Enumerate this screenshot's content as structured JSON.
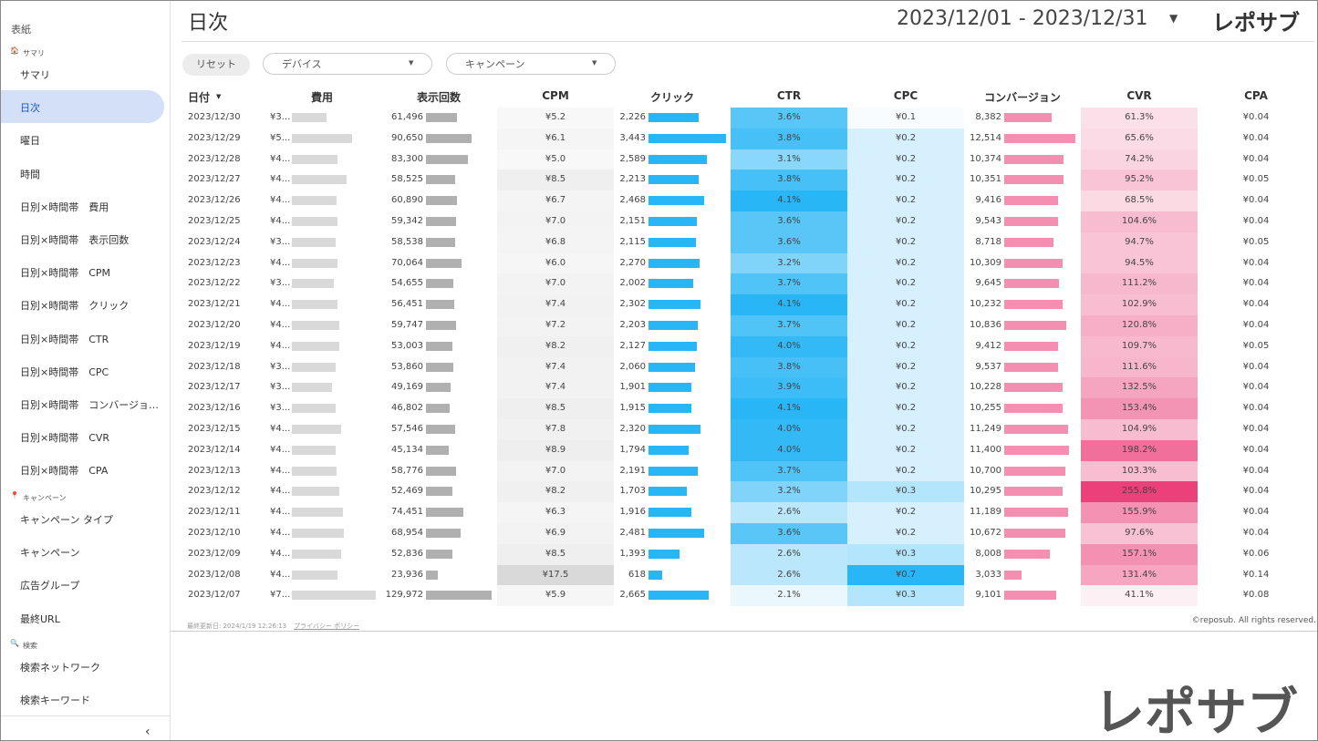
{
  "sidebar": {
    "cover": "表紙",
    "sections": [
      {
        "title": "サマリ",
        "items": [
          "サマリ",
          "日次",
          "曜日",
          "時間",
          "日別×時間帯　費用",
          "日別×時間帯　表示回数",
          "日別×時間帯　CPM",
          "日別×時間帯　クリック",
          "日別×時間帯　CTR",
          "日別×時間帯　CPC",
          "日別×時間帯　コンバージョ…",
          "日別×時間帯　CVR",
          "日別×時間帯　CPA"
        ]
      },
      {
        "title": "キャンペーン",
        "items": [
          "キャンペーン タイプ",
          "キャンペーン",
          "広告グループ",
          "最終URL"
        ]
      },
      {
        "title": "検索",
        "items": [
          "検索ネットワーク",
          "検索キーワード"
        ]
      }
    ]
  },
  "header": {
    "title": "日次",
    "date_range": "2023/12/01 - 2023/12/31",
    "logo": "レポサブ"
  },
  "filters": {
    "reset": "リセット",
    "device": "デバイス",
    "campaign": "キャンペーン"
  },
  "table": {
    "columns": [
      "日付",
      "費用",
      "表示回数",
      "CPM",
      "クリック",
      "CTR",
      "CPC",
      "コンバージョン",
      "CVR",
      "CPA"
    ],
    "rows": [
      [
        "2023/12/30",
        "¥3...",
        "61,496",
        "¥5.2",
        "2,226",
        "3.6%",
        "¥0.1",
        "8,382",
        "61.3%",
        "¥0.04"
      ],
      [
        "2023/12/29",
        "¥5...",
        "90,650",
        "¥6.1",
        "3,443",
        "3.8%",
        "¥0.2",
        "12,514",
        "65.6%",
        "¥0.04"
      ],
      [
        "2023/12/28",
        "¥4...",
        "83,300",
        "¥5.0",
        "2,589",
        "3.1%",
        "¥0.2",
        "10,374",
        "74.2%",
        "¥0.04"
      ],
      [
        "2023/12/27",
        "¥4...",
        "58,525",
        "¥8.5",
        "2,213",
        "3.8%",
        "¥0.2",
        "10,351",
        "95.2%",
        "¥0.05"
      ],
      [
        "2023/12/26",
        "¥4...",
        "60,890",
        "¥6.7",
        "2,468",
        "4.1%",
        "¥0.2",
        "9,416",
        "68.5%",
        "¥0.04"
      ],
      [
        "2023/12/25",
        "¥4...",
        "59,342",
        "¥7.0",
        "2,151",
        "3.6%",
        "¥0.2",
        "9,543",
        "104.6%",
        "¥0.04"
      ],
      [
        "2023/12/24",
        "¥3...",
        "58,538",
        "¥6.8",
        "2,115",
        "3.6%",
        "¥0.2",
        "8,718",
        "94.7%",
        "¥0.05"
      ],
      [
        "2023/12/23",
        "¥4...",
        "70,064",
        "¥6.0",
        "2,270",
        "3.2%",
        "¥0.2",
        "10,309",
        "94.5%",
        "¥0.04"
      ],
      [
        "2023/12/22",
        "¥3...",
        "54,655",
        "¥7.0",
        "2,002",
        "3.7%",
        "¥0.2",
        "9,645",
        "111.2%",
        "¥0.04"
      ],
      [
        "2023/12/21",
        "¥4...",
        "56,451",
        "¥7.4",
        "2,302",
        "4.1%",
        "¥0.2",
        "10,232",
        "102.9%",
        "¥0.04"
      ],
      [
        "2023/12/20",
        "¥4...",
        "59,747",
        "¥7.2",
        "2,203",
        "3.7%",
        "¥0.2",
        "10,836",
        "120.8%",
        "¥0.04"
      ],
      [
        "2023/12/19",
        "¥4...",
        "53,003",
        "¥8.2",
        "2,127",
        "4.0%",
        "¥0.2",
        "9,412",
        "109.7%",
        "¥0.05"
      ],
      [
        "2023/12/18",
        "¥3...",
        "53,860",
        "¥7.4",
        "2,060",
        "3.8%",
        "¥0.2",
        "9,537",
        "111.6%",
        "¥0.04"
      ],
      [
        "2023/12/17",
        "¥3...",
        "49,169",
        "¥7.4",
        "1,901",
        "3.9%",
        "¥0.2",
        "10,228",
        "132.5%",
        "¥0.04"
      ],
      [
        "2023/12/16",
        "¥3...",
        "46,802",
        "¥8.5",
        "1,915",
        "4.1%",
        "¥0.2",
        "10,255",
        "153.4%",
        "¥0.04"
      ],
      [
        "2023/12/15",
        "¥4...",
        "57,546",
        "¥7.8",
        "2,320",
        "4.0%",
        "¥0.2",
        "11,249",
        "104.9%",
        "¥0.04"
      ],
      [
        "2023/12/14",
        "¥4...",
        "45,134",
        "¥8.9",
        "1,794",
        "4.0%",
        "¥0.2",
        "11,400",
        "198.2%",
        "¥0.04"
      ],
      [
        "2023/12/13",
        "¥4...",
        "58,776",
        "¥7.0",
        "2,191",
        "3.7%",
        "¥0.2",
        "10,700",
        "103.3%",
        "¥0.04"
      ],
      [
        "2023/12/12",
        "¥4...",
        "52,469",
        "¥8.2",
        "1,703",
        "3.2%",
        "¥0.3",
        "10,295",
        "255.8%",
        "¥0.04"
      ],
      [
        "2023/12/11",
        "¥4...",
        "74,451",
        "¥6.3",
        "1,916",
        "2.6%",
        "¥0.2",
        "11,189",
        "155.9%",
        "¥0.04"
      ],
      [
        "2023/12/10",
        "¥4...",
        "68,954",
        "¥6.9",
        "2,481",
        "3.6%",
        "¥0.2",
        "10,672",
        "97.6%",
        "¥0.04"
      ],
      [
        "2023/12/09",
        "¥4...",
        "52,836",
        "¥8.5",
        "1,393",
        "2.6%",
        "¥0.3",
        "8,008",
        "157.1%",
        "¥0.06"
      ],
      [
        "2023/12/08",
        "¥4...",
        "23,936",
        "¥17.5",
        "618",
        "2.6%",
        "¥0.7",
        "3,033",
        "131.4%",
        "¥0.14"
      ],
      [
        "2023/12/07",
        "¥7...",
        "129,972",
        "¥5.9",
        "2,665",
        "2.1%",
        "¥0.3",
        "9,101",
        "41.1%",
        "¥0.08"
      ]
    ],
    "cost_values": [
      320,
      553,
      417,
      497,
      408,
      415,
      398,
      420,
      383,
      418,
      430,
      435,
      399,
      364,
      398,
      449,
      402,
      411,
      430,
      469,
      476,
      449,
      419,
      767
    ]
  },
  "footer": {
    "updated": "最終更新日: 2024/1/19 12:26:13",
    "privacy": "プライバシー ポリシー",
    "copyright": "©reposub. All rights reserved.",
    "big_logo": "レポサブ"
  }
}
